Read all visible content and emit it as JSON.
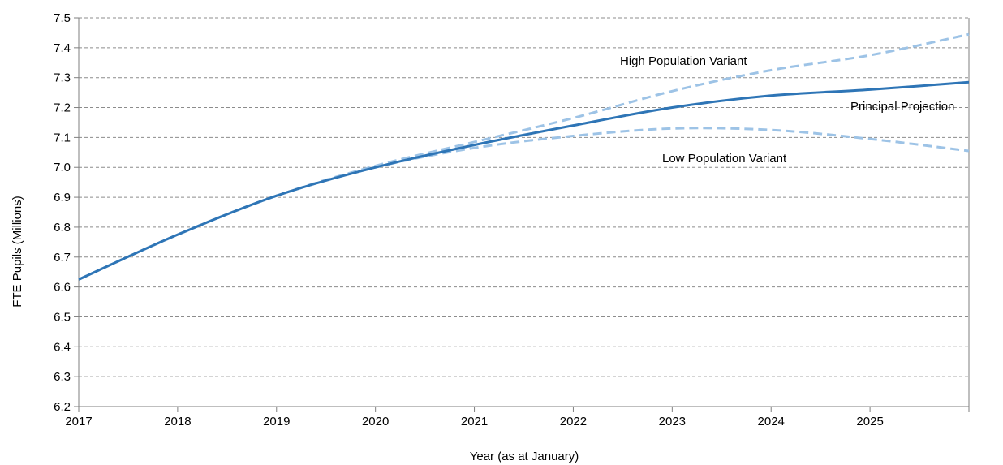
{
  "chart_data": {
    "type": "line",
    "title": "",
    "xlabel": "Year (as at January)",
    "ylabel": "FTE Pupils (Millions)",
    "xlim": [
      2017,
      2026
    ],
    "ylim": [
      6.2,
      7.5
    ],
    "x_ticks": [
      "2017",
      "2018",
      "2019",
      "2020",
      "2021",
      "2022",
      "2023",
      "2024",
      "2025"
    ],
    "y_ticks": [
      "6.2",
      "6.3",
      "6.4",
      "6.5",
      "6.6",
      "6.7",
      "6.8",
      "6.9",
      "7.0",
      "7.1",
      "7.2",
      "7.3",
      "7.4",
      "7.5"
    ],
    "grid": "horizontal dashed",
    "x": [
      2017,
      2018,
      2019,
      2020,
      2021,
      2022,
      2023,
      2024,
      2025,
      2026
    ],
    "series": [
      {
        "name": "Principal Projection",
        "style": "solid",
        "color": "#2e75b6",
        "values": [
          6.625,
          6.775,
          6.905,
          7.0,
          7.075,
          7.14,
          7.2,
          7.24,
          7.26,
          7.285
        ]
      },
      {
        "name": "High Population Variant",
        "style": "dashed",
        "color": "#9dc3e6",
        "values": [
          6.625,
          6.775,
          6.905,
          7.005,
          7.085,
          7.165,
          7.255,
          7.325,
          7.375,
          7.445
        ]
      },
      {
        "name": "Low Population Variant",
        "style": "dashed",
        "color": "#9dc3e6",
        "values": [
          6.625,
          6.775,
          6.905,
          7.0,
          7.065,
          7.105,
          7.13,
          7.125,
          7.095,
          7.055
        ]
      }
    ]
  }
}
